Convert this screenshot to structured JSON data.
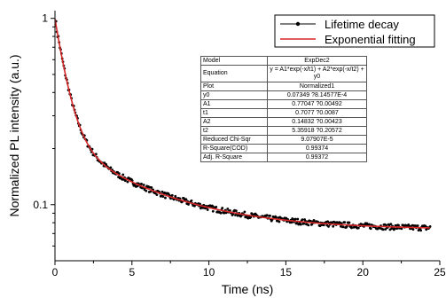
{
  "chart_data": {
    "type": "scatter",
    "xlabel": "Time (ns)",
    "ylabel": "Normalized PL intensity (a.u.)",
    "xlim": [
      0,
      25
    ],
    "ylim": [
      0.05,
      1.1
    ],
    "y_scale": "log",
    "x_ticks": [
      "0",
      "5",
      "10",
      "15",
      "20",
      "25"
    ],
    "y_ticks": [
      {
        "value": 1,
        "label": "1"
      },
      {
        "value": 0.1,
        "label": "0.1"
      }
    ],
    "grid": false,
    "legend_position": "top-right",
    "series": [
      {
        "name": "Lifetime decay",
        "style": "scatter",
        "color": "#000000",
        "x": [
          0.05,
          0.2,
          0.35,
          0.5,
          0.75,
          1.0,
          1.25,
          1.5,
          1.75,
          2.0,
          2.5,
          3.0,
          3.5,
          4.0,
          4.5,
          5.0,
          6.0,
          7.0,
          8.0,
          9.0,
          10.0,
          11.0,
          12.0,
          13.0,
          14.0,
          15.0,
          16.0,
          17.0,
          18.0,
          19.0,
          20.0,
          21.0,
          22.0,
          23.0,
          24.0,
          24.3
        ],
        "y": [
          0.93,
          0.85,
          0.76,
          0.68,
          0.57,
          0.485,
          0.42,
          0.37,
          0.335,
          0.305,
          0.26,
          0.228,
          0.207,
          0.192,
          0.18,
          0.17,
          0.155,
          0.144,
          0.135,
          0.128,
          0.121,
          0.115,
          0.11,
          0.105,
          0.1,
          0.096,
          0.092,
          0.088,
          0.085,
          0.082,
          0.079,
          0.076,
          0.074,
          0.072,
          0.07,
          0.07
        ]
      },
      {
        "name": "Exponential fitting",
        "style": "line",
        "color": "#d62728",
        "model": {
          "y0": 0.07349,
          "A1": 0.77047,
          "t1": 0.7077,
          "A2": 0.14832,
          "t2": 5.35918
        }
      }
    ]
  },
  "fit_table": [
    {
      "label": "Model",
      "value": "ExpDec2"
    },
    {
      "label": "Equation",
      "value": "y = A1*exp(-x/t1) + A2*exp(-x/t2) + y0",
      "tall": true
    },
    {
      "label": "Plot",
      "value": "Normalized1"
    },
    {
      "label": "y0",
      "value": "0.07349 ?8.14577E-4"
    },
    {
      "label": "A1",
      "value": "0.77047 ?0.00492"
    },
    {
      "label": "t1",
      "value": "0.7077 ?0.0087"
    },
    {
      "label": "A2",
      "value": "0.14832 ?0.00423"
    },
    {
      "label": "t2",
      "value": "5.35918 ?0.20572"
    },
    {
      "label": "Reduced Chi-Sqr",
      "value": "9.07907E-5"
    },
    {
      "label": "R-Square(COD)",
      "value": "0.99374"
    },
    {
      "label": "Adj. R-Square",
      "value": "0.99372"
    }
  ]
}
